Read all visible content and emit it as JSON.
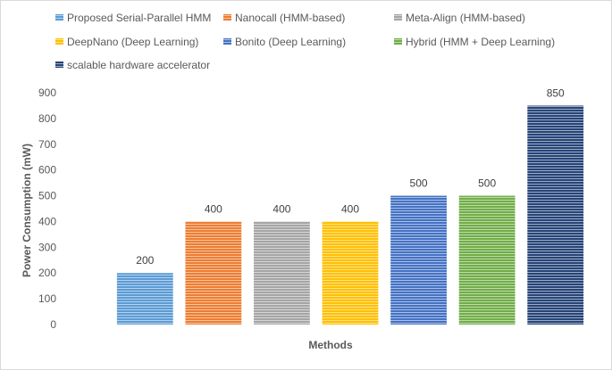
{
  "chart_data": {
    "type": "bar",
    "title": "",
    "xlabel": "Methods",
    "ylabel": "Power Consumption (mW)",
    "ylim": [
      0,
      900
    ],
    "yticks": [
      0,
      100,
      200,
      300,
      400,
      500,
      600,
      700,
      800,
      900
    ],
    "grid": false,
    "legend_position": "top",
    "series": [
      {
        "name": "Proposed Serial-Parallel HMM",
        "value": 200,
        "label": "200",
        "color": "#5b9bd5"
      },
      {
        "name": "Nanocall (HMM-based)",
        "value": 400,
        "label": "400",
        "color": "#ed7d31"
      },
      {
        "name": "Meta-Align (HMM-based)",
        "value": 400,
        "label": "400",
        "color": "#a5a5a5"
      },
      {
        "name": "DeepNano (Deep Learning)",
        "value": 400,
        "label": "400",
        "color": "#ffc000"
      },
      {
        "name": "Bonito (Deep Learning)",
        "value": 500,
        "label": "500",
        "color": "#4472c4"
      },
      {
        "name": "Hybrid (HMM + Deep Learning)",
        "value": 500,
        "label": "500",
        "color": "#70ad47"
      },
      {
        "name": "scalable hardware accelerator",
        "value": 850,
        "label": "850",
        "color": "#264478"
      }
    ]
  }
}
